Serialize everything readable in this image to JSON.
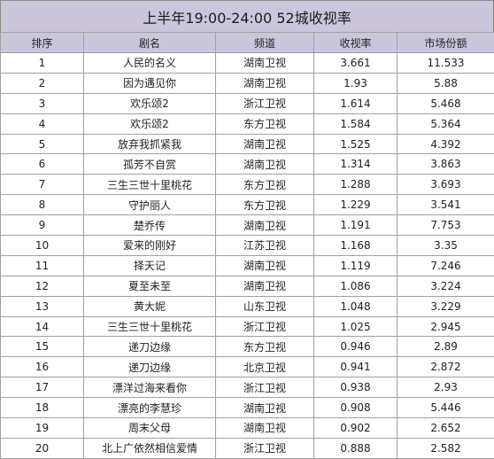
{
  "title": "上半年19:00-24:00 52城收视率",
  "headers": [
    "排序",
    "剧名",
    "频道",
    "收视率",
    "市场份额"
  ],
  "rows": [
    [
      "1",
      "人民的名义",
      "湖南卫视",
      "3.661",
      "11.533"
    ],
    [
      "2",
      "因为遇见你",
      "湖南卫视",
      "1.93",
      "5.88"
    ],
    [
      "3",
      "欢乐颂2",
      "浙江卫视",
      "1.614",
      "5.468"
    ],
    [
      "4",
      "欢乐颂2",
      "东方卫视",
      "1.584",
      "5.364"
    ],
    [
      "5",
      "放弃我抓紧我",
      "湖南卫视",
      "1.525",
      "4.392"
    ],
    [
      "6",
      "孤芳不自赏",
      "湖南卫视",
      "1.314",
      "3.863"
    ],
    [
      "7",
      "三生三世十里桃花",
      "东方卫视",
      "1.288",
      "3.693"
    ],
    [
      "8",
      "守护丽人",
      "东方卫视",
      "1.229",
      "3.541"
    ],
    [
      "9",
      "楚乔传",
      "湖南卫视",
      "1.191",
      "7.753"
    ],
    [
      "10",
      "爱来的刚好",
      "江苏卫视",
      "1.168",
      "3.35"
    ],
    [
      "11",
      "择天记",
      "湖南卫视",
      "1.119",
      "7.246"
    ],
    [
      "12",
      "夏至未至",
      "湖南卫视",
      "1.086",
      "3.224"
    ],
    [
      "13",
      "黄大妮",
      "山东卫视",
      "1.048",
      "3.229"
    ],
    [
      "14",
      "三生三世十里桃花",
      "浙江卫视",
      "1.025",
      "2.945"
    ],
    [
      "15",
      "递刀边缘",
      "东方卫视",
      "0.946",
      "2.89"
    ],
    [
      "16",
      "递刀边缘",
      "北京卫视",
      "0.941",
      "2.872"
    ],
    [
      "17",
      "漂洋过海来看你",
      "浙江卫视",
      "0.938",
      "2.93"
    ],
    [
      "18",
      "漂亮的李慧珍",
      "湖南卫视",
      "0.908",
      "5.446"
    ],
    [
      "19",
      "周末父母",
      "湖南卫视",
      "0.902",
      "2.652"
    ],
    [
      "20",
      "北上广依然相信爱情",
      "浙江卫视",
      "0.888",
      "2.582"
    ]
  ]
}
